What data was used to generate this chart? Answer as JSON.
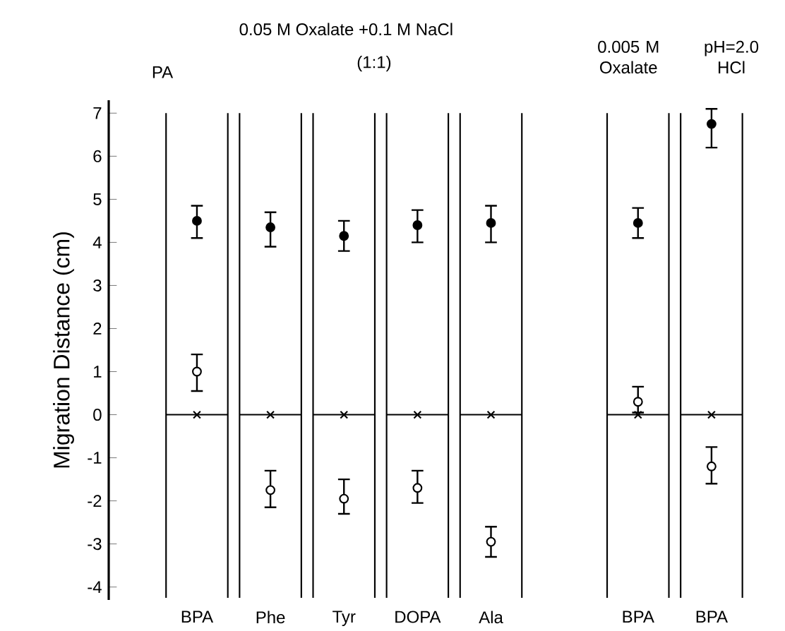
{
  "chart_data": {
    "type": "scatter",
    "categories": [
      "BPA",
      "Phe",
      "Tyr",
      "DOPA",
      "Ala",
      null,
      "BPA",
      "BPA"
    ],
    "ylabel": "Migration Distance (cm)",
    "annotations": [
      "0.05 M Oxalate +0.1 M NaCl",
      "(1:1)",
      "PA",
      "0.005 M Oxalate",
      "pH=2.0 HCl"
    ],
    "grid": true,
    "ylim": [
      -4.3,
      7.3
    ],
    "yticks": [
      -4,
      -3,
      -2,
      -1,
      0,
      1,
      2,
      3,
      4,
      5,
      6,
      7
    ],
    "series": [
      {
        "color": "#000000",
        "marker": "circle",
        "values": [
          4.5,
          4.35,
          4.15,
          4.4,
          4.45,
          null,
          4.45,
          6.75
        ],
        "errors": [
          [
            4.1,
            4.85
          ],
          [
            3.9,
            4.7
          ],
          [
            3.8,
            4.5
          ],
          [
            4.0,
            4.75
          ],
          [
            4.0,
            4.85
          ],
          null,
          [
            4.1,
            4.8
          ],
          [
            6.2,
            7.1
          ]
        ]
      },
      {
        "color": "#ffffff",
        "marker": "circle",
        "values": [
          1.0,
          -1.75,
          -1.95,
          -1.7,
          -2.95,
          null,
          0.3,
          -1.2
        ],
        "errors": [
          [
            0.55,
            1.4
          ],
          [
            -2.15,
            -1.3
          ],
          [
            -2.3,
            -1.5
          ],
          [
            -2.05,
            -1.3
          ],
          [
            -3.3,
            -2.6
          ],
          null,
          [
            0.05,
            0.65
          ],
          [
            -1.6,
            -0.75
          ]
        ]
      },
      {
        "color": "#000000",
        "marker": "cross",
        "values": [
          0,
          0,
          0,
          0,
          0,
          null,
          0,
          0
        ]
      }
    ]
  }
}
